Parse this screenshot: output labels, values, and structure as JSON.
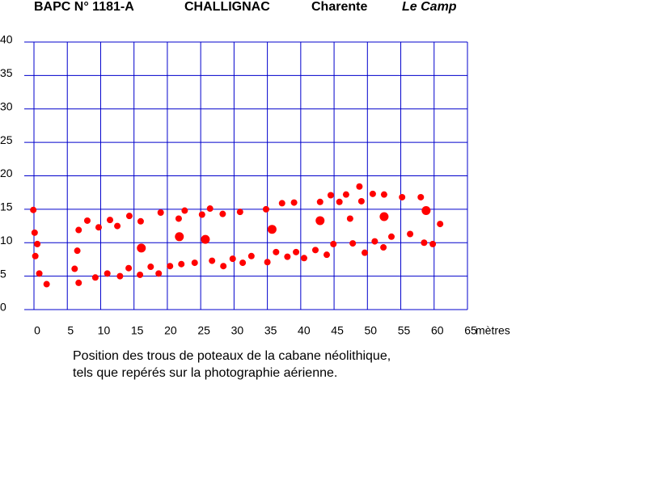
{
  "chart_data": {
    "type": "scatter",
    "title": [
      "BAPC N° 1181-A",
      "CHALLIGNAC",
      "Charente",
      "Le Camp"
    ],
    "x_label": "mètres",
    "caption": [
      "Position des trous de poteaux de la cabane néolithique,",
      "tels que repérés sur la photographie aérienne."
    ],
    "xlim": [
      0,
      65
    ],
    "ylim": [
      0,
      40
    ],
    "xticks": [
      0,
      5,
      10,
      15,
      20,
      25,
      30,
      35,
      40,
      45,
      50,
      55,
      60,
      65
    ],
    "yticks": [
      0,
      5,
      10,
      15,
      20,
      25,
      30,
      35,
      40
    ],
    "grid": true,
    "grid_color": "#0000cc",
    "series": [
      {
        "color": "#ff0000",
        "x": [
          -0.1,
          0.1,
          0.5,
          0.2,
          0.8,
          1.9,
          6.1,
          6.7,
          6.5,
          6.7,
          8.0,
          9.2,
          9.7,
          11.0,
          11.4,
          12.5,
          12.9,
          14.2,
          14.3,
          16.0,
          15.9,
          17.5,
          18.7,
          19.0,
          20.4,
          21.7,
          22.1,
          22.6,
          24.1,
          25.2,
          26.4,
          26.7,
          28.3,
          28.4,
          29.8,
          30.9,
          31.3,
          32.6,
          34.8,
          35.0,
          36.3,
          37.2,
          38.0,
          39.0,
          39.3,
          40.5,
          42.2,
          42.9,
          43.9,
          44.5,
          44.9,
          45.8,
          46.8,
          47.4,
          47.8,
          48.8,
          49.1,
          49.6,
          50.8,
          51.1,
          52.5,
          52.4,
          53.6,
          55.2,
          56.4,
          58.0,
          58.5,
          59.8,
          60.9
        ],
        "values": [
          14.9,
          11.5,
          9.8,
          8.0,
          5.4,
          3.8,
          6.1,
          4.0,
          8.8,
          11.9,
          13.3,
          4.8,
          12.3,
          5.4,
          13.4,
          12.5,
          5.0,
          6.2,
          14.0,
          13.2,
          5.2,
          6.4,
          5.4,
          14.5,
          6.5,
          13.6,
          6.8,
          14.8,
          7.0,
          14.2,
          15.1,
          7.3,
          14.3,
          6.5,
          7.6,
          14.6,
          7.0,
          8.0,
          15.0,
          7.1,
          8.6,
          15.9,
          7.9,
          16.0,
          8.6,
          7.7,
          8.9,
          16.1,
          8.2,
          17.1,
          9.8,
          16.1,
          17.2,
          13.6,
          9.9,
          18.4,
          16.2,
          8.5,
          17.3,
          10.2,
          17.2,
          9.3,
          10.9,
          16.8,
          11.3,
          16.8,
          10.0,
          9.8,
          12.8
        ]
      },
      {
        "color": "#ff0000",
        "x": [
          16.1,
          21.8,
          25.7,
          35.7,
          42.9,
          52.5,
          58.8
        ],
        "values": [
          9.2,
          10.9,
          10.5,
          12.0,
          13.3,
          13.9,
          14.8
        ]
      }
    ]
  }
}
